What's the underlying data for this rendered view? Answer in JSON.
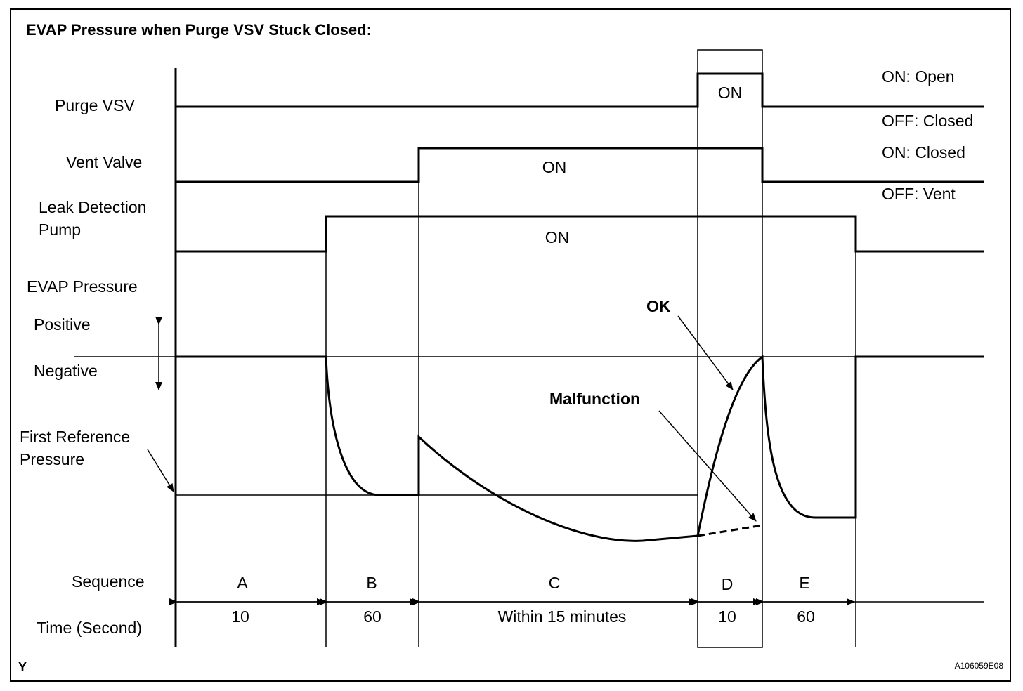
{
  "title": "EVAP Pressure when Purge VSV Stuck Closed:",
  "rows": {
    "purge_vsv": {
      "label": "Purge VSV",
      "on_label": "ON",
      "notes": [
        "ON: Open",
        "OFF: Closed"
      ]
    },
    "vent_valve": {
      "label": "Vent Valve",
      "on_label": "ON",
      "notes": [
        "ON: Closed",
        "OFF: Vent"
      ]
    },
    "leak_detection_pump": {
      "label_lines": [
        "Leak Detection",
        "Pump"
      ],
      "on_label": "ON"
    },
    "evap_pressure": {
      "label": "EVAP Pressure",
      "positive": "Positive",
      "negative": "Negative",
      "reference_lines": [
        "First Reference",
        "Pressure"
      ],
      "ok": "OK",
      "malfunction": "Malfunction"
    }
  },
  "sequence": {
    "label": "Sequence",
    "time_label": "Time (Second)",
    "steps": [
      {
        "name": "A",
        "time": 10
      },
      {
        "name": "B",
        "time": 60
      },
      {
        "name": "C",
        "time": "Within 15 minutes"
      },
      {
        "name": "D",
        "time": 10
      },
      {
        "name": "E",
        "time": 60
      }
    ]
  },
  "footer": {
    "left": "Y",
    "right": "A106059E08"
  }
}
